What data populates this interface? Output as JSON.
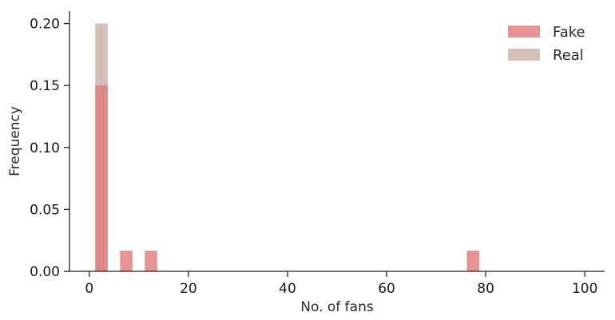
{
  "chart_data": {
    "type": "bar",
    "subtype": "histogram",
    "title": "",
    "xlabel": "No. of fans",
    "ylabel": "Frequency",
    "xlim": [
      -4,
      104
    ],
    "ylim": [
      0,
      0.21
    ],
    "xticks": [
      0,
      20,
      40,
      60,
      80,
      100
    ],
    "yticks": [
      0.0,
      0.05,
      0.1,
      0.15,
      0.2
    ],
    "xtick_labels": [
      "0",
      "20",
      "40",
      "60",
      "80",
      "100"
    ],
    "ytick_labels": [
      "0.00",
      "0.05",
      "0.10",
      "0.15",
      "0.20"
    ],
    "grid": false,
    "legend": {
      "placement": "top-right"
    },
    "bin_width": 2.5,
    "series": [
      {
        "name": "Fake",
        "color": "#e07b7b",
        "bins": [
          {
            "x_start": 1.2,
            "x_end": 3.7,
            "value": 0.15
          },
          {
            "x_start": 6.2,
            "x_end": 8.7,
            "value": 0.0167
          },
          {
            "x_start": 11.2,
            "x_end": 13.7,
            "value": 0.0167
          },
          {
            "x_start": 76.2,
            "x_end": 78.7,
            "value": 0.0167
          }
        ]
      },
      {
        "name": "Real",
        "color": "#b08c80",
        "bins": [
          {
            "x_start": 1.2,
            "x_end": 3.7,
            "value": 0.2
          }
        ]
      }
    ]
  }
}
